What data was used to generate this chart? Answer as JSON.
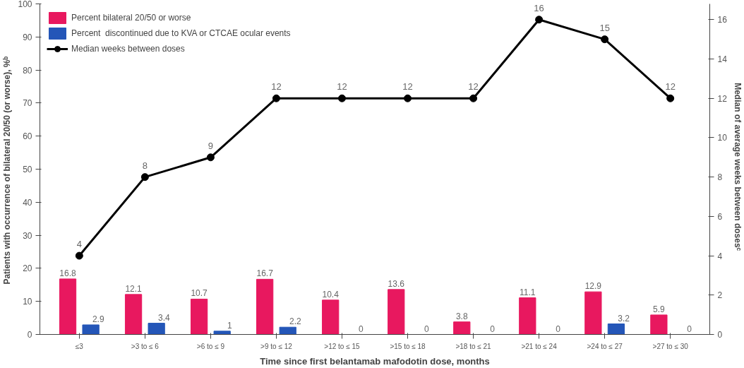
{
  "chart_data": {
    "type": "bar",
    "categories": [
      "≤3",
      ">3 to ≤ 6",
      ">6 to ≤ 9",
      ">9 to ≤ 12",
      ">12 to ≤ 15",
      ">15 to ≤ 18",
      ">18 to ≤ 21",
      ">21 to ≤ 24",
      ">24 to ≤ 27",
      ">27 to ≤ 30"
    ],
    "xlabel": "Time since first belantamab mafodotin dose, months",
    "ylabel": "Patients  with occurrence of bilateral 20/50 (or worse), %ᵇ",
    "y2label": "Median of average weeks  between  dosesᶜ",
    "series": [
      {
        "name": "Percent bilateral 20/50 or worse",
        "color": "#e8185f",
        "values": [
          16.8,
          12.1,
          10.7,
          16.7,
          10.4,
          13.6,
          3.8,
          11.1,
          12.9,
          5.9
        ]
      },
      {
        "name": "Percent  discontinued due to KVA or CTCAE ocular events",
        "color": "#2456b8",
        "values": [
          2.9,
          3.4,
          1,
          2.2,
          0,
          0,
          0,
          0,
          3.2,
          0
        ]
      },
      {
        "name": "Median weeks between doses",
        "color": "#000000",
        "type": "line",
        "axis": "y2",
        "marker": "circle",
        "values": [
          4,
          8,
          9,
          12,
          12,
          12,
          12,
          16,
          15,
          12
        ]
      }
    ],
    "ylim": [
      0,
      100
    ],
    "yticks": [
      0,
      10,
      20,
      30,
      40,
      50,
      60,
      70,
      80,
      90,
      100
    ],
    "y2lim": [
      0,
      16.8
    ],
    "y2ticks": [
      0,
      2,
      4,
      6,
      8,
      10,
      12,
      14,
      16
    ],
    "data_labels": true,
    "legend": "top left",
    "grid": false
  }
}
